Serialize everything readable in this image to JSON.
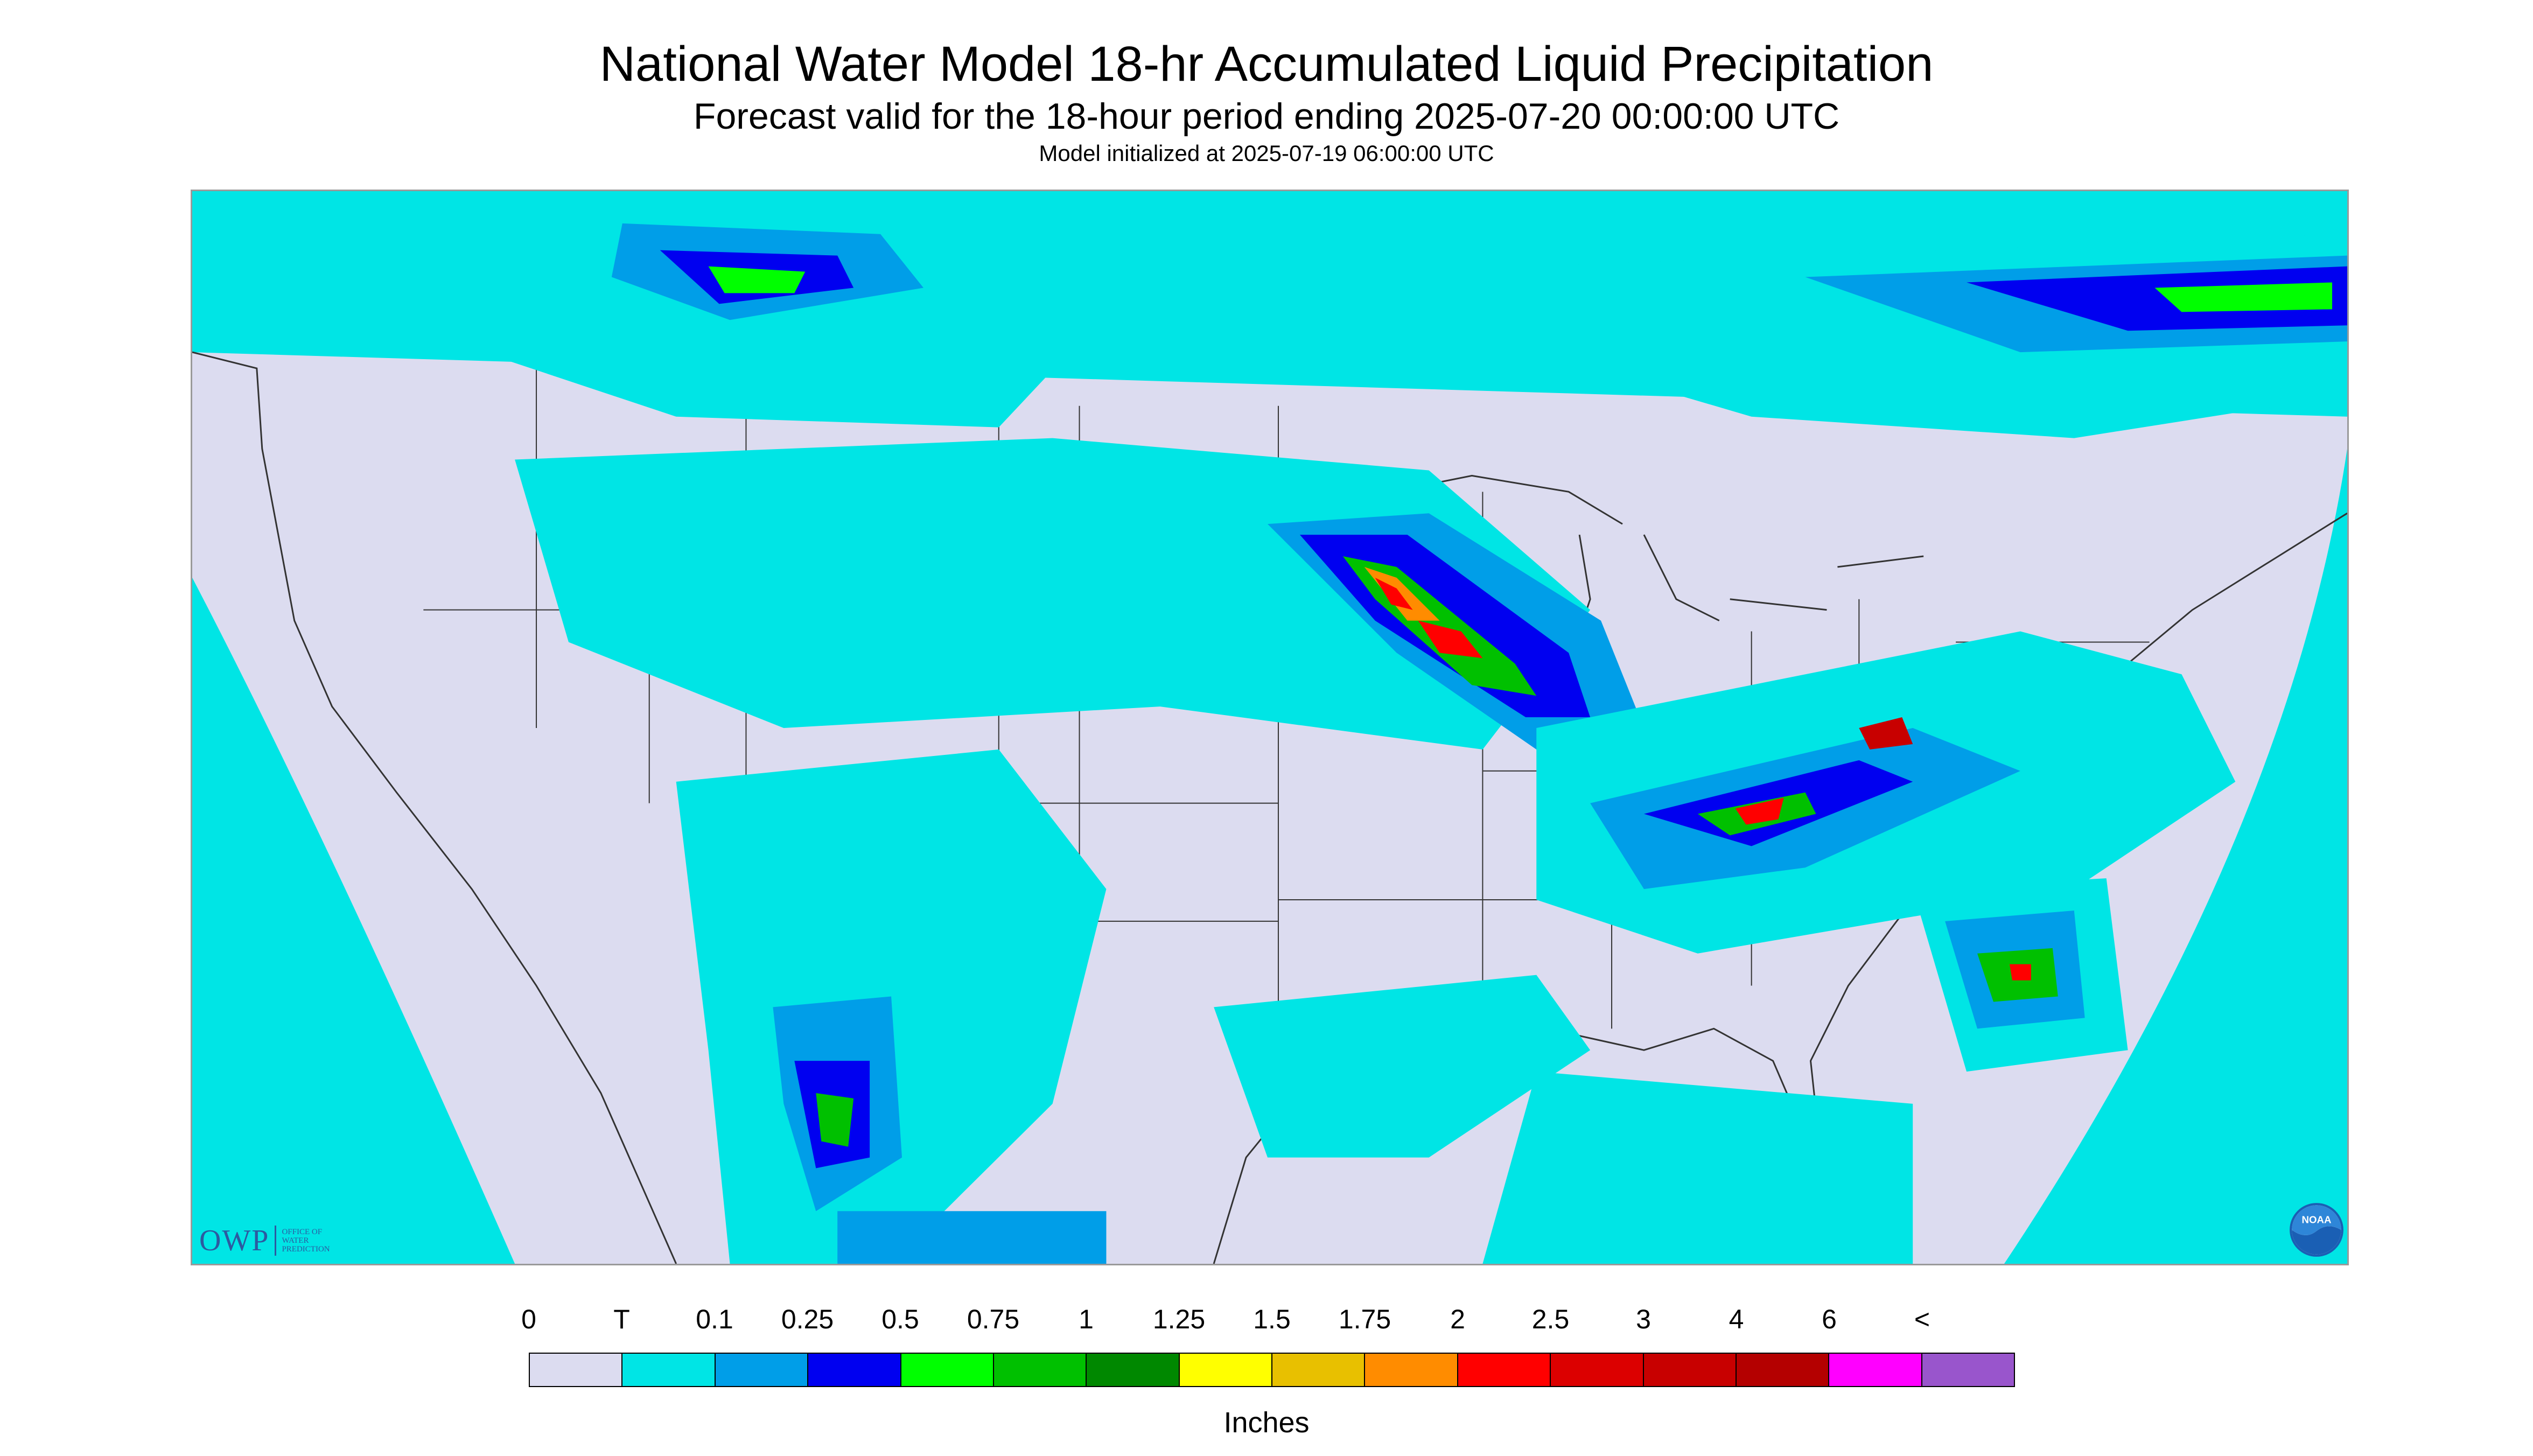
{
  "header": {
    "title": "National Water Model 18-hr Accumulated Liquid Precipitation",
    "subtitle": "Forecast valid for the 18-hour period ending 2025-07-20 00:00:00 UTC",
    "init_line": "Model initialized at 2025-07-19 06:00:00 UTC"
  },
  "map": {
    "background_color": "#00e5e5",
    "land_color": "#dcdcf0",
    "boundary_color": "#333333",
    "frame_color": "#9a9a9a",
    "shown_swatch_colors": [
      "#00e5e5",
      "#009ee8",
      "#0000f0",
      "#00ff00",
      "#00c000",
      "#008800",
      "#e8c000",
      "#ff8c00",
      "#ff0000",
      "#c80000"
    ]
  },
  "logos": {
    "owp": {
      "mark": "OWP",
      "lines": [
        "OFFICE OF",
        "WATER",
        "PREDICTION"
      ],
      "color": "#2c5aa0"
    },
    "noaa": {
      "mark": "NOAA",
      "icon": "noaa-seal-icon"
    }
  },
  "legend": {
    "labels": [
      "0",
      "T",
      "0.1",
      "0.25",
      "0.5",
      "0.75",
      "1",
      "1.25",
      "1.5",
      "1.75",
      "2",
      "2.5",
      "3",
      "4",
      "6",
      "<"
    ],
    "colors": [
      "#dcdcf0",
      "#00e5e5",
      "#009ee8",
      "#0000f0",
      "#00ff00",
      "#00c000",
      "#008800",
      "#ffff00",
      "#e8c000",
      "#ff8c00",
      "#ff0000",
      "#dc0000",
      "#c80000",
      "#b40000",
      "#ff00ff",
      "#9955cc"
    ],
    "units": "Inches"
  }
}
